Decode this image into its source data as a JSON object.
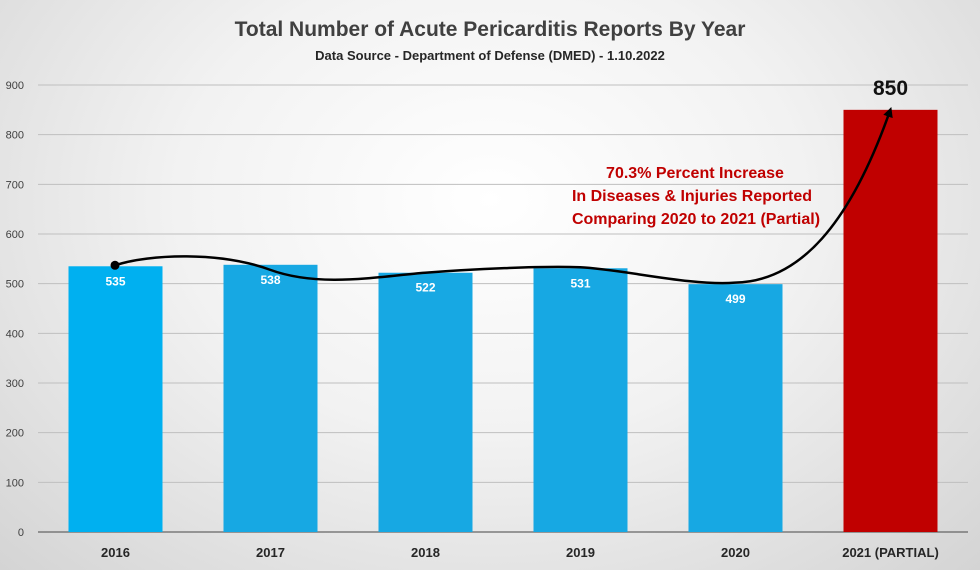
{
  "chart_data": {
    "type": "bar",
    "title": "Total Number of Acute Pericarditis Reports By Year",
    "subtitle": "Data Source - Department of Defense (DMED) - 1.10.2022",
    "categories": [
      "2016",
      "2017",
      "2018",
      "2019",
      "2020",
      "2021 (PARTIAL)"
    ],
    "values": [
      535,
      538,
      522,
      531,
      499,
      850
    ],
    "bar_colors": [
      "#00b0f0",
      "#17a8e3",
      "#17a8e3",
      "#17a8e3",
      "#17a8e3",
      "#c00000"
    ],
    "ylim": [
      0,
      900
    ],
    "yticks": [
      0,
      100,
      200,
      300,
      400,
      500,
      600,
      700,
      800,
      900
    ],
    "grid": true,
    "xlabel": "",
    "ylabel": "",
    "annotation": {
      "lines": [
        "70.3% Percent Increase",
        "In Diseases & Injuries Reported",
        "Comparing 2020 to 2021 (Partial)"
      ],
      "color": "#c00000"
    }
  }
}
